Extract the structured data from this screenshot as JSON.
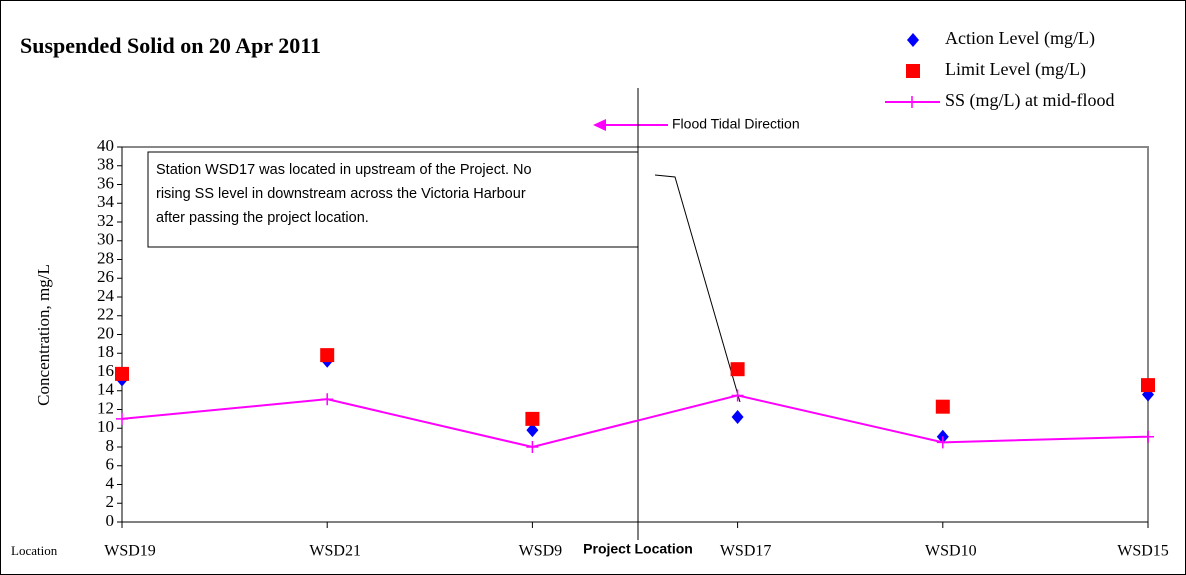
{
  "chart_data": {
    "type": "line",
    "title": "Suspended Solid on 20 Apr 2011",
    "y_label": "Concentration, mg/L",
    "x_label": "Location",
    "categories": [
      "WSD19",
      "WSD21",
      "WSD9",
      "WSD17",
      "WSD10",
      "WSD15"
    ],
    "series": [
      {
        "name": "Action Level (mg/L)",
        "color": "#0000ff",
        "marker": "diamond",
        "line": false,
        "values": [
          15.2,
          17.2,
          9.8,
          11.2,
          9.1,
          13.6
        ]
      },
      {
        "name": "Limit Level (mg/L)",
        "color": "#ff0000",
        "marker": "square",
        "line": false,
        "values": [
          15.8,
          17.8,
          11,
          16.3,
          12.3,
          14.6
        ]
      },
      {
        "name": "SS (mg/L) at mid-flood",
        "color": "#ff00ff",
        "marker": "plus",
        "line": true,
        "values": [
          11,
          13.1,
          8,
          13.5,
          8.5,
          9.1
        ]
      }
    ],
    "ylim": [
      0,
      40
    ],
    "yticks": [
      0,
      2,
      4,
      6,
      8,
      10,
      12,
      14,
      16,
      18,
      20,
      22,
      24,
      26,
      28,
      30,
      32,
      34,
      36,
      38,
      40
    ],
    "annotations": {
      "flood_direction": "Flood Tidal Direction",
      "project_location": "Project Location",
      "note": [
        "Station WSD17 was located in upstream of the Project. No",
        "rising SS level in downstream across the Victoria Harbour",
        "after passing the project location."
      ]
    }
  }
}
